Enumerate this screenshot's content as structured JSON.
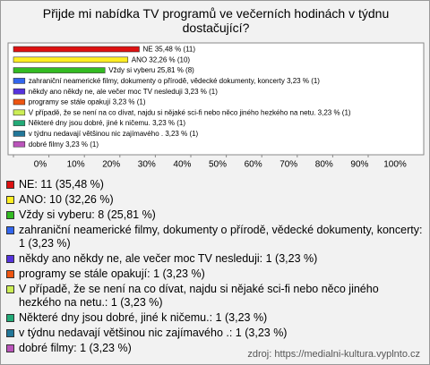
{
  "chart_data": {
    "type": "bar",
    "orientation": "horizontal",
    "title": "Přijde mi nabídka TV programů ve večerních hodinách v týdnu dostačující?",
    "values": [
      35.48,
      32.26,
      25.81,
      3.23,
      3.23,
      3.23,
      3.23,
      3.23,
      3.23,
      3.23
    ],
    "value_labels": [
      "NE 35,48 % (11)",
      "ANO 32,26 % (10)",
      "Vždy si vyberu 25,81 % (8)",
      "zahraniční neamerické filmy, dokumenty o přírodě, vědecké dokumenty, koncerty 3,23 % (1)",
      "někdy ano někdy ne, ale večer moc TV nesleduji 3,23 % (1)",
      "programy se stále opakují 3,23 % (1)",
      "V případě, že se není na co dívat, najdu si nějaké sci-fi nebo něco jiného hezkého na netu. 3,23 % (1)",
      "Některé dny jsou dobré, jiné k ničemu. 3,23 % (1)",
      "v týdnu nedavají většinou nic zajímavého . 3,23 % (1)",
      "dobré filmy 3,23 % (1)"
    ],
    "legend_labels": [
      "NE: 11 (35,48 %)",
      "ANO: 10 (32,26 %)",
      "Vždy si vyberu: 8 (25,81 %)",
      "zahraniční neamerické filmy, dokumenty o přírodě, vědecké dokumenty, koncerty: 1 (3,23 %)",
      "někdy ano někdy ne, ale večer moc TV nesleduji: 1 (3,23 %)",
      "programy se stále opakují: 1 (3,23 %)",
      "V případě, že se není na co dívat, najdu si nějaké sci-fi nebo něco jiného hezkého na netu.: 1 (3,23 %)",
      "Některé dny jsou dobré, jiné k ničemu.: 1 (3,23 %)",
      "v týdnu nedavají většinou nic zajímavého .: 1 (3,23 %)",
      "dobré filmy: 1 (3,23 %)"
    ],
    "colors": [
      "#dd1111",
      "#ffee22",
      "#33bb22",
      "#3366ee",
      "#5533dd",
      "#ee5511",
      "#ccee55",
      "#22aa77",
      "#227799",
      "#bb55bb"
    ],
    "xlim": [
      0,
      100
    ],
    "xticks": [
      {
        "value": 0,
        "label": "0%"
      },
      {
        "value": 10,
        "label": "10%"
      },
      {
        "value": 20,
        "label": "20%"
      },
      {
        "value": 30,
        "label": "30%"
      },
      {
        "value": 40,
        "label": "40%"
      },
      {
        "value": 50,
        "label": "50%"
      },
      {
        "value": 60,
        "label": "60%"
      },
      {
        "value": 70,
        "label": "70%"
      },
      {
        "value": 80,
        "label": "80%"
      },
      {
        "value": 90,
        "label": "90%"
      },
      {
        "value": 100,
        "label": "100%"
      }
    ],
    "grid": false,
    "source": "zdroj: https://medialni-kultura.vyplnto.cz"
  }
}
